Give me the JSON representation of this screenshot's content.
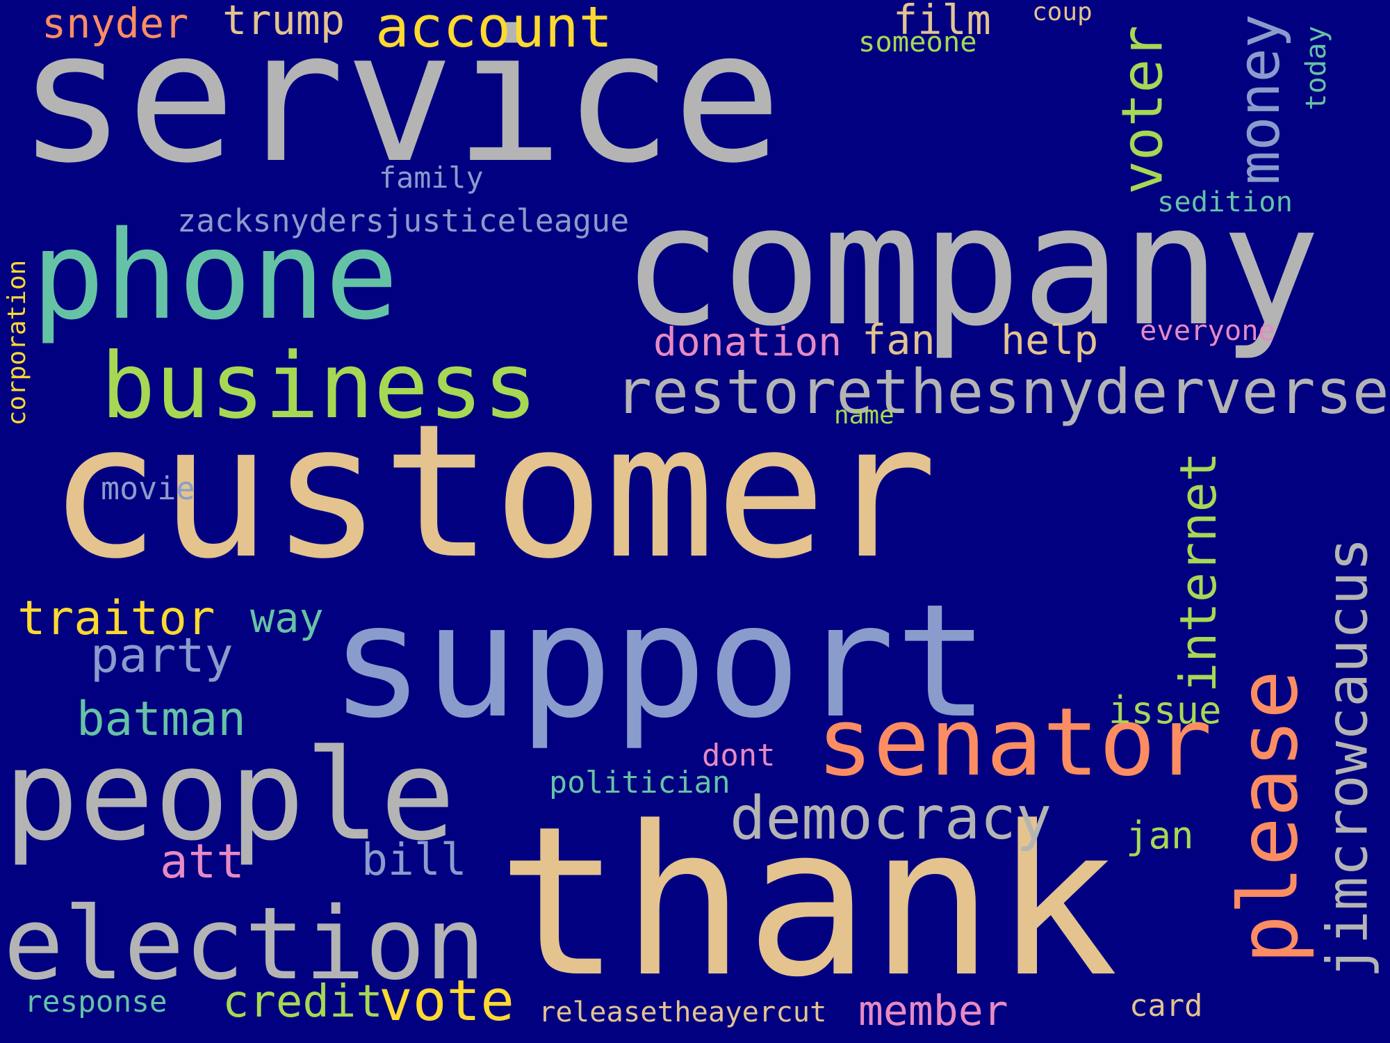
{
  "background_color": "#000080",
  "words": [
    {
      "text": "service",
      "color": "#B4B4B4"
    },
    {
      "text": "customer",
      "color": "#E4C38E"
    },
    {
      "text": "thank",
      "color": "#E4C38E"
    },
    {
      "text": "company",
      "color": "#B4B4B4"
    },
    {
      "text": "support",
      "color": "#8A9CCB"
    },
    {
      "text": "phone",
      "color": "#66C2A5"
    },
    {
      "text": "people",
      "color": "#B4B4B4"
    },
    {
      "text": "election",
      "color": "#B4B4B4"
    },
    {
      "text": "please",
      "color": "#FC8D62"
    },
    {
      "text": "business",
      "color": "#A6D854"
    },
    {
      "text": "senator",
      "color": "#FC8D62"
    },
    {
      "text": "restorethesnyderverse",
      "color": "#B4B4B4"
    },
    {
      "text": "jimcrowcaucus",
      "color": "#B4B4B4"
    },
    {
      "text": "democracy",
      "color": "#B4B4B4"
    },
    {
      "text": "account",
      "color": "#FFD92F"
    },
    {
      "text": "vote",
      "color": "#FFD92F"
    },
    {
      "text": "internet",
      "color": "#A6D854"
    },
    {
      "text": "voter",
      "color": "#A6D854"
    },
    {
      "text": "money",
      "color": "#8A9CCB"
    },
    {
      "text": "traitor",
      "color": "#FFD92F"
    },
    {
      "text": "party",
      "color": "#8A9CCB"
    },
    {
      "text": "batman",
      "color": "#66C2A5"
    },
    {
      "text": "credit",
      "color": "#A6D854"
    },
    {
      "text": "donation",
      "color": "#E78AC3"
    },
    {
      "text": "att",
      "color": "#E78AC3"
    },
    {
      "text": "member",
      "color": "#E78AC3"
    },
    {
      "text": "snyder",
      "color": "#FC8D62"
    },
    {
      "text": "trump",
      "color": "#E4C38E"
    },
    {
      "text": "film",
      "color": "#E4C38E"
    },
    {
      "text": "fan",
      "color": "#E4C38E"
    },
    {
      "text": "help",
      "color": "#E4C38E"
    },
    {
      "text": "bill",
      "color": "#8A9CCB"
    },
    {
      "text": "issue",
      "color": "#A6D854"
    },
    {
      "text": "jan",
      "color": "#A6D854"
    },
    {
      "text": "way",
      "color": "#66C2A5"
    },
    {
      "text": "zacksnydersjusticeleague",
      "color": "#8A9CCB"
    },
    {
      "text": "family",
      "color": "#8A9CCB"
    },
    {
      "text": "movie",
      "color": "#8A9CCB"
    },
    {
      "text": "politician",
      "color": "#66C2A5"
    },
    {
      "text": "releasetheayercut",
      "color": "#E4C38E"
    },
    {
      "text": "response",
      "color": "#66C2A5"
    },
    {
      "text": "card",
      "color": "#E4C38E"
    },
    {
      "text": "dont",
      "color": "#E78AC3"
    },
    {
      "text": "everyone",
      "color": "#E78AC3"
    },
    {
      "text": "sedition",
      "color": "#66C2A5"
    },
    {
      "text": "name",
      "color": "#A6D854"
    },
    {
      "text": "coup",
      "color": "#E4C38E"
    },
    {
      "text": "someone",
      "color": "#A6D854"
    },
    {
      "text": "today",
      "color": "#66C2A5"
    },
    {
      "text": "corporation",
      "color": "#FFD92F"
    }
  ]
}
